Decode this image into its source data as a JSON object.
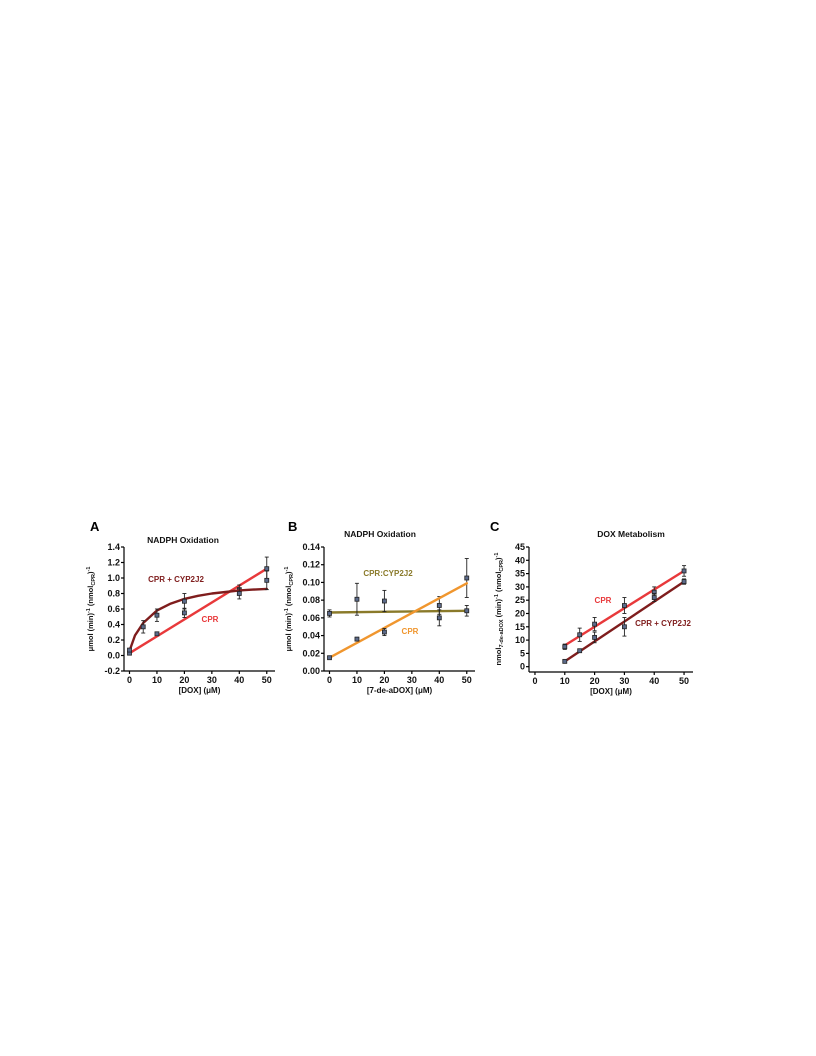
{
  "chart_data": [
    {
      "panel": "A",
      "type": "scatter",
      "title": "NADPH Oxidation",
      "xlabel": "[DOX] (μM)",
      "ylabel": "μmol (min)-1 (nmolCPR)-1",
      "xlim": [
        -2,
        53
      ],
      "ylim": [
        -0.2,
        1.4
      ],
      "xticks": [
        0,
        10,
        20,
        30,
        40,
        50
      ],
      "yticks": [
        -0.2,
        0.0,
        0.2,
        0.4,
        0.6,
        0.8,
        1.0,
        1.2,
        1.4
      ],
      "ytick_labels": [
        "-0.2",
        "0.0",
        "0.2",
        "0.4",
        "0.6",
        "0.8",
        "1.0",
        "1.2",
        "1.4"
      ],
      "series": [
        {
          "name": "CPR",
          "color": "#e8393b",
          "fit": "linear",
          "fit_x": [
            0,
            50
          ],
          "fit_y": [
            0.03,
            1.12
          ],
          "points": [
            {
              "x": 0,
              "y": 0.03,
              "err": 0.02
            },
            {
              "x": 10,
              "y": 0.28,
              "err": 0.01
            },
            {
              "x": 20,
              "y": 0.55,
              "err": 0.06
            },
            {
              "x": 40,
              "y": 0.85,
              "err": 0.06
            },
            {
              "x": 50,
              "y": 1.12,
              "err": 0.15
            }
          ]
        },
        {
          "name": "CPR + CYP2J2",
          "color": "#7f1d1d",
          "fit": "hyperbolic",
          "fit_x": [
            0,
            2,
            5,
            10,
            15,
            20,
            25,
            30,
            35,
            40,
            45,
            50
          ],
          "fit_y": [
            0.06,
            0.26,
            0.42,
            0.58,
            0.67,
            0.73,
            0.77,
            0.8,
            0.82,
            0.84,
            0.85,
            0.86
          ],
          "points": [
            {
              "x": 0,
              "y": 0.07,
              "err": 0.02
            },
            {
              "x": 5,
              "y": 0.37,
              "err": 0.08
            },
            {
              "x": 10,
              "y": 0.52,
              "err": 0.08
            },
            {
              "x": 20,
              "y": 0.7,
              "err": 0.1
            },
            {
              "x": 40,
              "y": 0.8,
              "err": 0.07
            },
            {
              "x": 50,
              "y": 0.97,
              "err": 0.12
            }
          ]
        }
      ]
    },
    {
      "panel": "B",
      "type": "scatter",
      "title": "NADPH Oxidation",
      "xlabel": "[7-de-aDOX] (μM)",
      "ylabel": "μmol (min)-1 (nmolCPR)-1",
      "xlim": [
        -2,
        53
      ],
      "ylim": [
        0,
        0.14
      ],
      "xticks": [
        0,
        10,
        20,
        30,
        40,
        50
      ],
      "yticks": [
        0,
        0.02,
        0.04,
        0.06,
        0.08,
        0.1,
        0.12,
        0.14
      ],
      "ytick_labels": [
        "0.00",
        "0.02",
        "0.04",
        "0.06",
        "0.08",
        "0.10",
        "0.12",
        "0.14"
      ],
      "series": [
        {
          "name": "CPR:CYP2J2",
          "color": "#8a7a2a",
          "fit": "linear",
          "fit_x": [
            0,
            50
          ],
          "fit_y": [
            0.066,
            0.068
          ],
          "points": [
            {
              "x": 0,
              "y": 0.065,
              "err": 0.004
            },
            {
              "x": 10,
              "y": 0.081,
              "err": 0.018
            },
            {
              "x": 20,
              "y": 0.079,
              "err": 0.012
            },
            {
              "x": 40,
              "y": 0.074,
              "err": 0.01
            },
            {
              "x": 50,
              "y": 0.105,
              "err": 0.022
            }
          ]
        },
        {
          "name": "CPR",
          "color": "#f0962e",
          "fit": "linear",
          "fit_x": [
            0,
            50
          ],
          "fit_y": [
            0.015,
            0.099
          ],
          "points": [
            {
              "x": 0,
              "y": 0.015,
              "err": 0.001
            },
            {
              "x": 10,
              "y": 0.036,
              "err": 0.002
            },
            {
              "x": 20,
              "y": 0.044,
              "err": 0.004
            },
            {
              "x": 40,
              "y": 0.06,
              "err": 0.009
            },
            {
              "x": 50,
              "y": 0.068,
              "err": 0.006
            }
          ]
        }
      ]
    },
    {
      "panel": "C",
      "type": "scatter",
      "title": "DOX Metabolism",
      "xlabel": "[DOX] (μM)",
      "ylabel": "nmol7-de-aDOX (min)-1 (nmolCPR)-1",
      "xlim": [
        -2,
        53
      ],
      "ylim": [
        -2,
        45
      ],
      "xticks": [
        0,
        10,
        20,
        30,
        40,
        50
      ],
      "yticks": [
        0,
        5,
        10,
        15,
        20,
        25,
        30,
        35,
        40,
        45
      ],
      "ytick_labels": [
        "0",
        "5",
        "10",
        "15",
        "20",
        "25",
        "30",
        "35",
        "40",
        "45"
      ],
      "series": [
        {
          "name": "CPR",
          "color": "#e8393b",
          "fit": "linear",
          "fit_x": [
            10,
            50
          ],
          "fit_y": [
            8,
            36
          ],
          "points": [
            {
              "x": 10,
              "y": 7.5,
              "err": 1
            },
            {
              "x": 15,
              "y": 12,
              "err": 2.5
            },
            {
              "x": 20,
              "y": 16,
              "err": 2.5
            },
            {
              "x": 30,
              "y": 23,
              "err": 3
            },
            {
              "x": 40,
              "y": 28,
              "err": 2
            },
            {
              "x": 50,
              "y": 36,
              "err": 2
            }
          ]
        },
        {
          "name": "CPR + CYP2J2",
          "color": "#7f1d1d",
          "fit": "linear",
          "fit_x": [
            10,
            50
          ],
          "fit_y": [
            2,
            32
          ],
          "points": [
            {
              "x": 10,
              "y": 2,
              "err": 0.5
            },
            {
              "x": 15,
              "y": 6,
              "err": 0.5
            },
            {
              "x": 20,
              "y": 11,
              "err": 2
            },
            {
              "x": 30,
              "y": 15,
              "err": 3.5
            },
            {
              "x": 40,
              "y": 26,
              "err": 1.5
            },
            {
              "x": 50,
              "y": 32,
              "err": 1
            }
          ]
        }
      ]
    }
  ]
}
